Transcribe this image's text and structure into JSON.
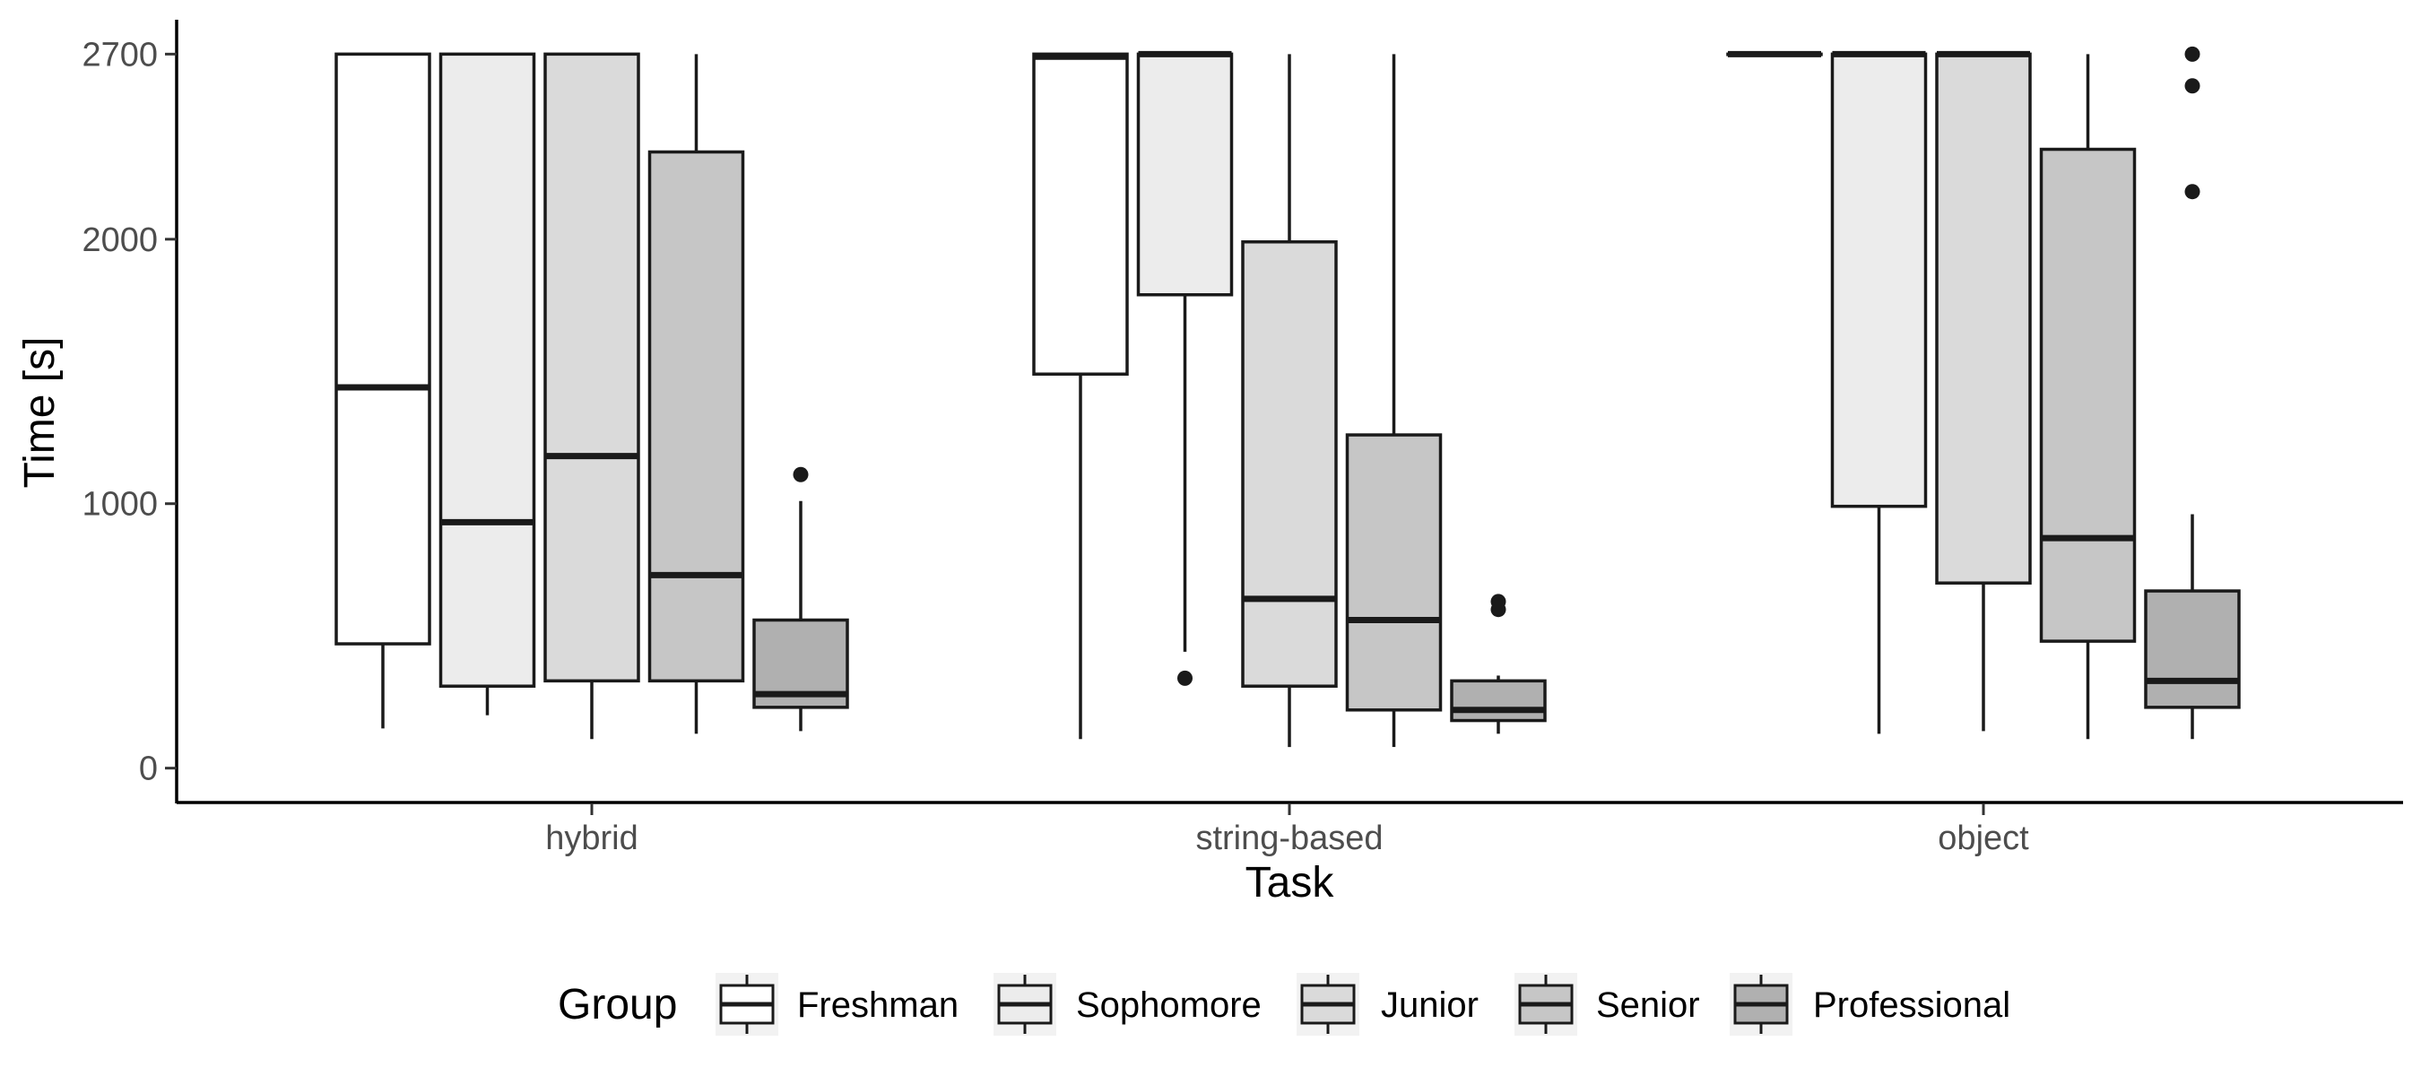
{
  "chart_data": {
    "type": "box",
    "xlabel": "Task",
    "ylabel": "Time [s]",
    "ylim": [
      -130,
      2830
    ],
    "yticks": [
      0,
      1000,
      2000,
      2700
    ],
    "ytick_labels": [
      "0",
      "1000",
      "2000",
      "2700"
    ],
    "categories": [
      "hybrid",
      "string-based",
      "object"
    ],
    "legend": {
      "title": "Group",
      "position": "bottom"
    },
    "groups": [
      {
        "name": "Freshman",
        "fill": "#ffffff"
      },
      {
        "name": "Sophomore",
        "fill": "#ececec"
      },
      {
        "name": "Junior",
        "fill": "#dadada"
      },
      {
        "name": "Senior",
        "fill": "#c6c6c6"
      },
      {
        "name": "Professional",
        "fill": "#b0b0b0"
      }
    ],
    "boxes": [
      [
        {
          "whisker_low": 150,
          "q1": 470,
          "median": 1440,
          "q3": 2700,
          "whisker_high": 2700,
          "outliers": []
        },
        {
          "whisker_low": 200,
          "q1": 310,
          "median": 930,
          "q3": 2700,
          "whisker_high": 2700,
          "outliers": []
        },
        {
          "whisker_low": 110,
          "q1": 330,
          "median": 1180,
          "q3": 2700,
          "whisker_high": 2700,
          "outliers": []
        },
        {
          "whisker_low": 130,
          "q1": 330,
          "median": 730,
          "q3": 2330,
          "whisker_high": 2700,
          "outliers": []
        },
        {
          "whisker_low": 140,
          "q1": 230,
          "median": 280,
          "q3": 560,
          "whisker_high": 1010,
          "outliers": [
            1110
          ]
        }
      ],
      [
        {
          "whisker_low": 110,
          "q1": 1490,
          "median": 2690,
          "q3": 2700,
          "whisker_high": 2700,
          "outliers": []
        },
        {
          "whisker_low": 440,
          "q1": 1790,
          "median": 2700,
          "q3": 2700,
          "whisker_high": 2700,
          "outliers": [
            340
          ]
        },
        {
          "whisker_low": 80,
          "q1": 310,
          "median": 640,
          "q3": 1990,
          "whisker_high": 2700,
          "outliers": []
        },
        {
          "whisker_low": 80,
          "q1": 220,
          "median": 560,
          "q3": 1260,
          "whisker_high": 2700,
          "outliers": []
        },
        {
          "whisker_low": 130,
          "q1": 180,
          "median": 220,
          "q3": 330,
          "whisker_high": 350,
          "outliers": [
            600,
            630
          ]
        }
      ],
      [
        {
          "whisker_low": 2700,
          "q1": 2700,
          "median": 2700,
          "q3": 2700,
          "whisker_high": 2700,
          "outliers": []
        },
        {
          "whisker_low": 130,
          "q1": 990,
          "median": 2700,
          "q3": 2700,
          "whisker_high": 2700,
          "outliers": []
        },
        {
          "whisker_low": 140,
          "q1": 700,
          "median": 2700,
          "q3": 2700,
          "whisker_high": 2700,
          "outliers": []
        },
        {
          "whisker_low": 110,
          "q1": 480,
          "median": 870,
          "q3": 2340,
          "whisker_high": 2700,
          "outliers": []
        },
        {
          "whisker_low": 110,
          "q1": 230,
          "median": 330,
          "q3": 670,
          "whisker_high": 960,
          "outliers": [
            2180,
            2580,
            2700
          ]
        }
      ]
    ]
  },
  "colors": {
    "axis": "#000000",
    "box_stroke": "#1a1a1a",
    "legend_key_bg": "#f2f2f2"
  }
}
